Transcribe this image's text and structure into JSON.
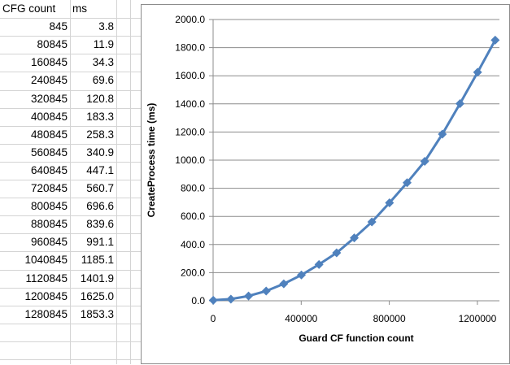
{
  "sheet": {
    "headers": [
      "CFG count",
      "ms"
    ],
    "rows": [
      [
        "845",
        "3.8"
      ],
      [
        "80845",
        "11.9"
      ],
      [
        "160845",
        "34.3"
      ],
      [
        "240845",
        "69.6"
      ],
      [
        "320845",
        "120.8"
      ],
      [
        "400845",
        "183.3"
      ],
      [
        "480845",
        "258.3"
      ],
      [
        "560845",
        "340.9"
      ],
      [
        "640845",
        "447.1"
      ],
      [
        "720845",
        "560.7"
      ],
      [
        "800845",
        "696.6"
      ],
      [
        "880845",
        "839.6"
      ],
      [
        "960845",
        "991.1"
      ],
      [
        "1040845",
        "1185.1"
      ],
      [
        "1120845",
        "1401.9"
      ],
      [
        "1200845",
        "1625.0"
      ],
      [
        "1280845",
        "1853.3"
      ]
    ]
  },
  "chart_data": {
    "type": "line",
    "title": "",
    "xlabel": "Guard CF function count",
    "ylabel": "CreateProcess time (ms)",
    "x": [
      845,
      80845,
      160845,
      240845,
      320845,
      400845,
      480845,
      560845,
      640845,
      720845,
      800845,
      880845,
      960845,
      1040845,
      1120845,
      1200845,
      1280845
    ],
    "series": [
      {
        "values": [
          3.8,
          11.9,
          34.3,
          69.6,
          120.8,
          183.3,
          258.3,
          340.9,
          447.1,
          560.7,
          696.6,
          839.6,
          991.1,
          1185.1,
          1401.9,
          1625.0,
          1853.3
        ]
      }
    ],
    "xlim": [
      0,
      1300000
    ],
    "ylim": [
      0,
      2000
    ],
    "x_ticks": [
      0,
      400000,
      800000,
      1200000
    ],
    "x_tick_labels": [
      "0",
      "400000",
      "800000",
      "1200000"
    ],
    "y_ticks": [
      0,
      200,
      400,
      600,
      800,
      1000,
      1200,
      1400,
      1600,
      1800,
      2000
    ],
    "y_tick_labels": [
      "0.0",
      "200.0",
      "400.0",
      "600.0",
      "800.0",
      "1000.0",
      "1200.0",
      "1400.0",
      "1600.0",
      "1800.0",
      "2000.0"
    ],
    "grid": true,
    "legend": "none",
    "marker": "diamond",
    "line_color": "#4f81bd",
    "gridline_color": "#8c8c8c"
  }
}
